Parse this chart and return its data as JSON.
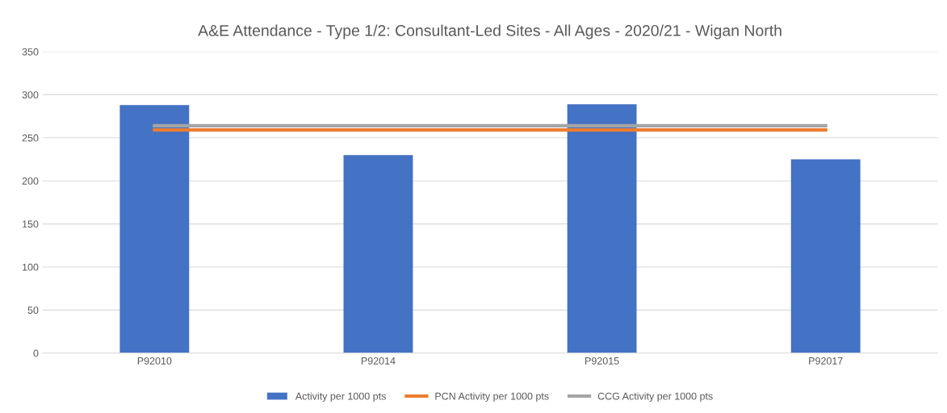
{
  "chart_data": {
    "type": "bar",
    "title": "A&E Attendance - Type 1/2: Consultant-Led Sites - All Ages - 2020/21 - Wigan North",
    "categories": [
      "P92010",
      "P92014",
      "P92015",
      "P92017"
    ],
    "series": [
      {
        "name": "Activity per 1000 pts",
        "color": "#4472c4",
        "values": [
          288,
          230,
          289,
          225
        ]
      },
      {
        "name": "PCN Activity per 1000 pts",
        "type": "line",
        "color": "#ed7d31",
        "values": [
          259,
          259,
          259,
          259
        ]
      },
      {
        "name": "CCG Activity per 1000 pts",
        "type": "line",
        "color": "#a5a5a5",
        "values": [
          264,
          264,
          264,
          264
        ]
      }
    ],
    "ylim": [
      0,
      350
    ],
    "yticks": [
      0,
      50,
      100,
      150,
      200,
      250,
      300,
      350
    ],
    "grid": "y",
    "legend": "bottom",
    "marker": "none",
    "line_style": "solid"
  }
}
